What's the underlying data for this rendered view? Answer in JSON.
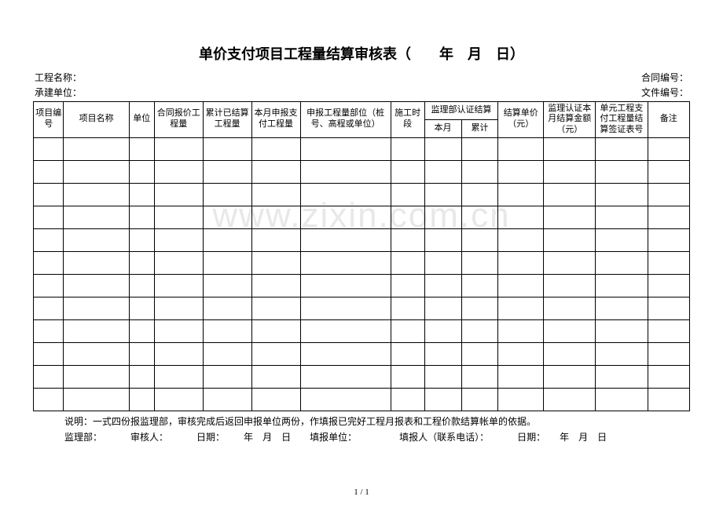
{
  "title": "单价支付项目工程量结算审核表（　　年　月　日）",
  "header": {
    "project_name_label": "工程名称：",
    "contract_no_label": "合同编号：",
    "contractor_label": "承建单位：",
    "file_no_label": "文件编号："
  },
  "columns": {
    "c1": "项目编号",
    "c2": "项目名称",
    "c3": "单位",
    "c4": "合同报价工程量",
    "c5": "累计已结算工程量",
    "c6": "本月申报支付工程量",
    "c7": "申报工程量部位（桩号、高程或单位）",
    "c8": "施工时段",
    "c9": "监理部认证结算",
    "c9a": "本月",
    "c9b": "累计",
    "c10": "结算单价（元）",
    "c11": "监理认证本月结算金额（元）",
    "c12": "单元工程支付工程量结算签证表号",
    "c13": "备注"
  },
  "col_widths": {
    "c1": 36,
    "c2": 78,
    "c3": 30,
    "c4": 58,
    "c5": 58,
    "c6": 58,
    "c7": 108,
    "c8": 40,
    "c9a": 44,
    "c9b": 44,
    "c10": 54,
    "c11": 62,
    "c12": 62,
    "c13": 50
  },
  "data_row_count": 12,
  "note": "说明：一式四份报监理部，审核完成后返回申报单位两份，作填报已完好工程月报表和工程价款结算帐单的依据。",
  "footer": {
    "f1": "监理部：",
    "f2": "审核人：",
    "f3": "日期：",
    "f4": "年",
    "f5": "月",
    "f6": "日",
    "f7": "填报单位：",
    "f8": "填报人（联系电话）：",
    "f9": "日期：",
    "f10": "年",
    "f11": "月",
    "f12": "日"
  },
  "pagenum": "1 / 1",
  "watermark": "www.zixin.com.cn",
  "colors": {
    "text": "#000000",
    "border": "#000000",
    "background": "#ffffff",
    "watermark": "#e8e8e8"
  }
}
